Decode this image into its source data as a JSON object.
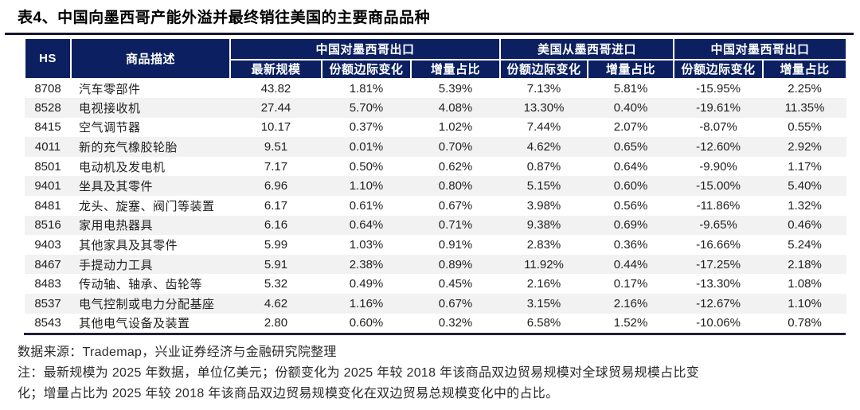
{
  "title": "表4、中国向墨西哥产能外溢并最终销往美国的主要商品品种",
  "colors": {
    "header_bg": "#0c2061",
    "row_alt_bg": "#f2f2f2",
    "rule": "#15152a"
  },
  "table": {
    "col_hs": "HS",
    "col_desc": "商品描述",
    "groups": [
      {
        "label": "中国对墨西哥出口",
        "cols": [
          "最新规模",
          "份额边际变化",
          "增量占比"
        ]
      },
      {
        "label": "美国从墨西哥进口",
        "cols": [
          "份额边际变化",
          "增量占比"
        ]
      },
      {
        "label": "中国对墨西哥出口",
        "cols": [
          "份额边际变化",
          "增量占比"
        ]
      }
    ],
    "rows": [
      [
        "8708",
        "汽车零部件",
        "43.82",
        "1.81%",
        "5.39%",
        "7.13%",
        "5.81%",
        "-15.95%",
        "2.25%"
      ],
      [
        "8528",
        "电视接收机",
        "27.44",
        "5.70%",
        "4.08%",
        "13.30%",
        "0.40%",
        "-19.61%",
        "11.35%"
      ],
      [
        "8415",
        "空气调节器",
        "10.17",
        "0.37%",
        "1.02%",
        "7.44%",
        "2.07%",
        "-8.07%",
        "0.55%"
      ],
      [
        "4011",
        "新的充气橡胶轮胎",
        "9.51",
        "0.01%",
        "0.70%",
        "4.62%",
        "0.65%",
        "-12.60%",
        "2.92%"
      ],
      [
        "8501",
        "电动机及发电机",
        "7.17",
        "0.50%",
        "0.62%",
        "0.87%",
        "0.64%",
        "-9.90%",
        "1.17%"
      ],
      [
        "9401",
        "坐具及其零件",
        "6.96",
        "1.10%",
        "0.80%",
        "5.15%",
        "0.60%",
        "-15.00%",
        "5.40%"
      ],
      [
        "8481",
        "龙头、旋塞、阀门等装置",
        "6.17",
        "0.61%",
        "0.67%",
        "3.98%",
        "0.56%",
        "-11.86%",
        "1.32%"
      ],
      [
        "8516",
        "家用电热器具",
        "6.16",
        "0.64%",
        "0.71%",
        "9.38%",
        "0.69%",
        "-9.65%",
        "0.46%"
      ],
      [
        "9403",
        "其他家具及其零件",
        "5.99",
        "1.03%",
        "0.91%",
        "2.83%",
        "0.36%",
        "-16.66%",
        "5.24%"
      ],
      [
        "8467",
        "手提动力工具",
        "5.91",
        "2.38%",
        "0.89%",
        "11.92%",
        "0.44%",
        "-17.25%",
        "2.18%"
      ],
      [
        "8483",
        "传动轴、轴承、齿轮等",
        "5.32",
        "0.49%",
        "0.45%",
        "2.16%",
        "0.17%",
        "-13.30%",
        "1.08%"
      ],
      [
        "8537",
        "电气控制或电力分配基座",
        "4.62",
        "1.16%",
        "0.67%",
        "3.15%",
        "2.16%",
        "-12.67%",
        "1.10%"
      ],
      [
        "8543",
        "其他电气设备及装置",
        "2.80",
        "0.60%",
        "0.32%",
        "6.58%",
        "1.52%",
        "-10.06%",
        "0.78%"
      ]
    ]
  },
  "footer": {
    "source": "数据来源：Trademap，兴业证券经济与金融研究院整理",
    "note_line1": "注：最新规模为 2025 年数据，单位亿美元；份额变化为 2025 年较 2018 年该商品双边贸易规模对全球贸易规模占比变",
    "note_line2": "化；增量占比为 2025 年较 2018 年该商品双边贸易规模变化在双边贸易总规模变化中的占比。"
  }
}
